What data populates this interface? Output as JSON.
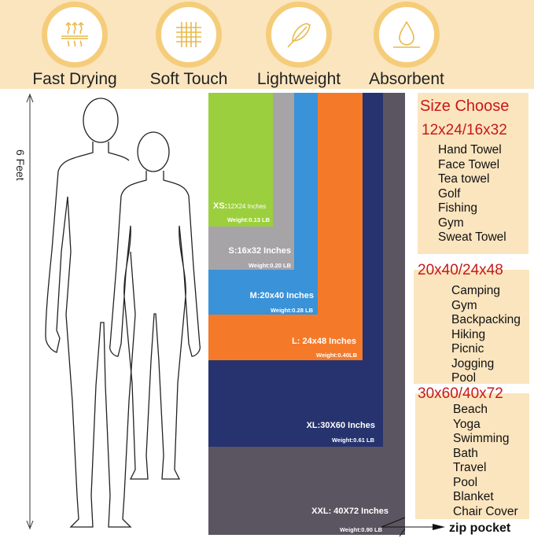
{
  "features": [
    {
      "label": "Fast Drying",
      "icon": "heat-waves-icon"
    },
    {
      "label": "Soft Touch",
      "icon": "fabric-weave-icon"
    },
    {
      "label": "Lightweight",
      "icon": "feather-icon"
    },
    {
      "label": "Absorbent",
      "icon": "water-drop-icon"
    }
  ],
  "height_label": "6 Feet",
  "towels": [
    {
      "size": "XXL: 40X72 Inches",
      "weight": "Weight:0.90 LB",
      "color": "#5a5560"
    },
    {
      "size": "XL:30X60 Inches",
      "weight": "Weight:0.61 LB",
      "color": "#26336e"
    },
    {
      "size": "L: 24x48 Inches",
      "weight": "Weight:0.40LB",
      "color": "#f47a2a"
    },
    {
      "size": "M:20x40 Inches",
      "weight": "Weight:0.28 LB",
      "color": "#3a92d8"
    },
    {
      "size": "S:16x32 Inches",
      "weight": "Weight:0.20 LB",
      "color": "#a7a4a8"
    },
    {
      "size_prefix": "XS:",
      "size": "12X24 Inches",
      "weight": "Weight:0.13 LB",
      "color": "#9ccf3e"
    }
  ],
  "zip_pocket": "zip pocket",
  "size_choose": {
    "title": "Size Choose",
    "groups": [
      {
        "sizes": "12x24/16x32",
        "uses": [
          "Hand Towel",
          "Face Towel",
          "Tea towel",
          "Golf",
          "Fishing",
          "Gym",
          "Sweat Towel"
        ]
      },
      {
        "sizes": "20x40/24x48",
        "uses": [
          "Camping",
          "Gym",
          "Backpacking",
          "Hiking",
          "Picnic",
          "Jogging",
          "Pool"
        ]
      },
      {
        "sizes": "30x60/40x72",
        "uses": [
          "Beach",
          "Yoga",
          "Swimming",
          "Bath",
          "Travel",
          "Pool",
          "Blanket",
          "Chair Cover"
        ]
      }
    ]
  },
  "colors": {
    "band": "#fbe5bf",
    "ring": "#f5cd7a",
    "accent_red": "#c81818"
  }
}
